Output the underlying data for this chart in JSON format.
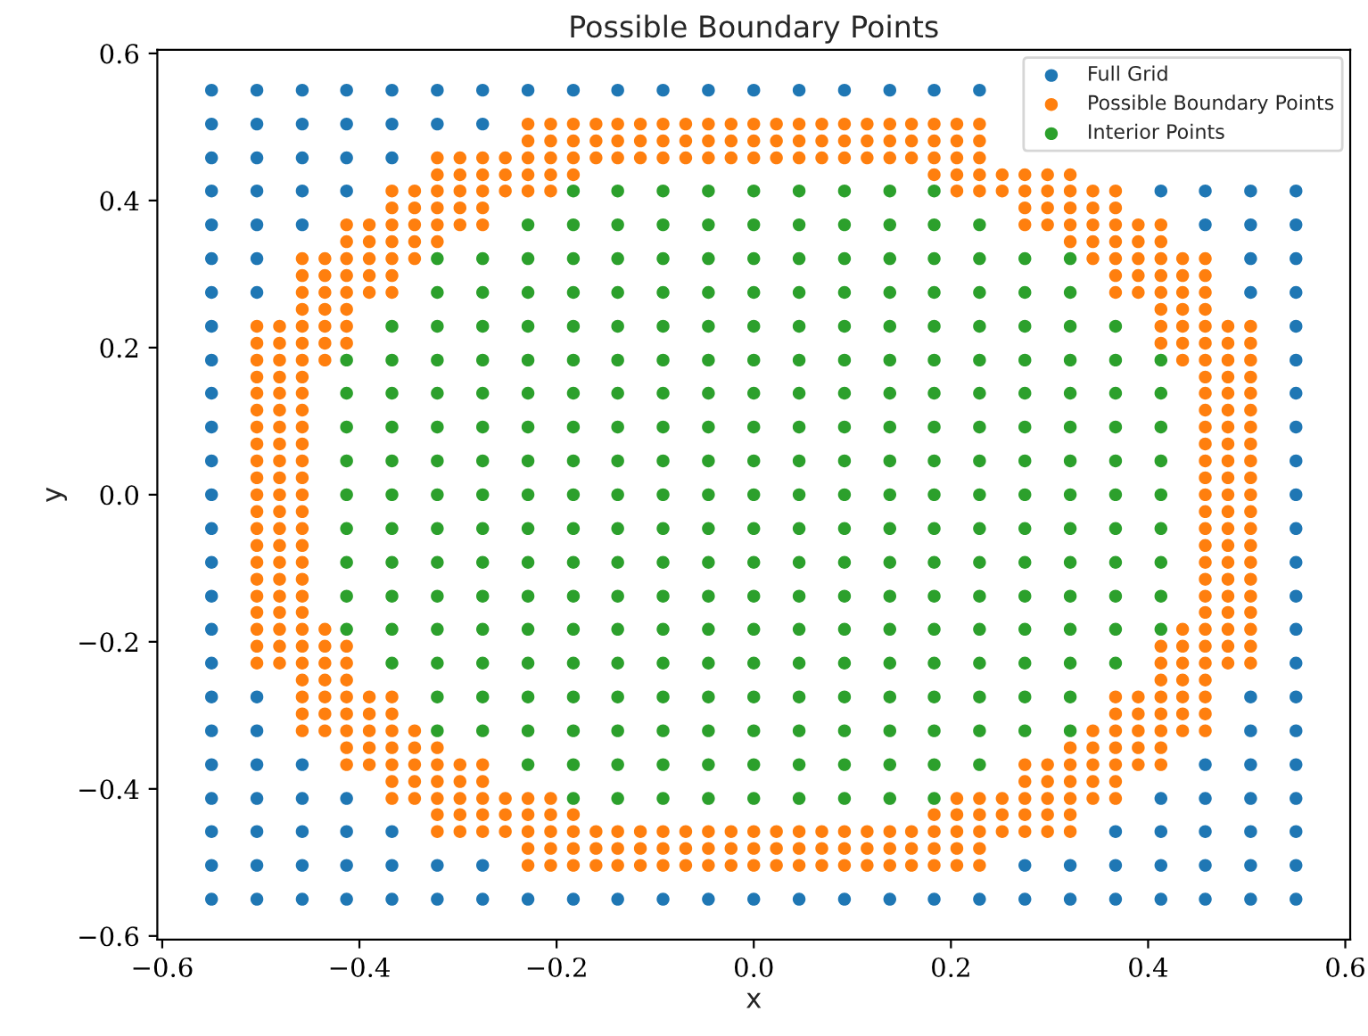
{
  "chart_data": {
    "type": "scatter",
    "title": "Possible Boundary Points",
    "xlabel": "x",
    "ylabel": "y",
    "marker": "circle",
    "legend": "top right",
    "xlim": [
      -0.605,
      0.605
    ],
    "ylim": [
      -0.605,
      0.605
    ],
    "xticks": [
      {
        "value": -0.6,
        "label": "−0.6"
      },
      {
        "value": -0.4,
        "label": "−0.4"
      },
      {
        "value": -0.2,
        "label": "−0.2"
      },
      {
        "value": 0,
        "label": "0.0"
      },
      {
        "value": 0.2,
        "label": "0.2"
      },
      {
        "value": 0.4,
        "label": "0.4"
      },
      {
        "value": 0.6,
        "label": "0.6"
      }
    ],
    "yticks": [
      {
        "value": -0.6,
        "label": "−0.6"
      },
      {
        "value": -0.4,
        "label": "−0.4"
      },
      {
        "value": -0.2,
        "label": "−0.2"
      },
      {
        "value": 0,
        "label": "0.0"
      },
      {
        "value": 0.2,
        "label": "0.2"
      },
      {
        "value": 0.4,
        "label": "0.4"
      },
      {
        "value": 0.6,
        "label": "0.6"
      }
    ],
    "series": [
      {
        "name": "Full Grid",
        "color": "#1f77b4",
        "x": [
          -0.55,
          -0.504,
          -0.458,
          -0.413,
          -0.367,
          -0.321,
          -0.275,
          -0.229,
          -0.183,
          -0.138,
          -0.092,
          -0.046,
          0,
          0.046,
          0.092,
          0.138,
          0.183,
          0.229,
          -0.55,
          -0.504,
          -0.458,
          -0.413,
          -0.367,
          -0.321,
          -0.275,
          -0.55,
          -0.504,
          -0.458,
          -0.413,
          -0.367,
          -0.55,
          -0.504,
          -0.458,
          -0.413,
          0.413,
          0.458,
          0.504,
          0.55,
          -0.55,
          -0.504,
          -0.458,
          0.458,
          0.504,
          0.55,
          -0.55,
          -0.504,
          0.504,
          0.55,
          -0.55,
          -0.504,
          0.504,
          0.55,
          -0.55,
          0.55,
          -0.55,
          0.55,
          -0.55,
          0.55,
          -0.55,
          0.55,
          -0.55,
          0.55,
          -0.55,
          0.55,
          -0.55,
          0.55,
          -0.55,
          0.55,
          -0.55,
          0.55,
          -0.55,
          0.55,
          -0.55,
          0.55,
          -0.55,
          -0.504,
          0.504,
          0.55,
          -0.55,
          -0.504,
          0.504,
          0.55,
          -0.55,
          -0.504,
          -0.458,
          0.458,
          0.504,
          0.55,
          -0.55,
          -0.504,
          -0.458,
          -0.413,
          0.413,
          0.458,
          0.504,
          0.55,
          -0.55,
          -0.504,
          -0.458,
          -0.413,
          -0.367,
          0.367,
          0.413,
          0.458,
          0.504,
          0.55,
          -0.55,
          -0.504,
          -0.458,
          -0.413,
          -0.367,
          -0.321,
          -0.275,
          0.275,
          0.321,
          0.367,
          0.413,
          0.458,
          0.504,
          0.55,
          -0.55,
          -0.504,
          -0.458,
          -0.413,
          -0.367,
          -0.321,
          -0.275,
          -0.229,
          -0.183,
          -0.138,
          -0.092,
          -0.046,
          0,
          0.046,
          0.092,
          0.138,
          0.183,
          0.229,
          0.275,
          0.321,
          0.367,
          0.413,
          0.458,
          0.504,
          0.55
        ],
        "values": [
          0.55,
          0.55,
          0.55,
          0.55,
          0.55,
          0.55,
          0.55,
          0.55,
          0.55,
          0.55,
          0.55,
          0.55,
          0.55,
          0.55,
          0.55,
          0.55,
          0.55,
          0.55,
          0.504,
          0.504,
          0.504,
          0.504,
          0.504,
          0.504,
          0.504,
          0.458,
          0.458,
          0.458,
          0.458,
          0.458,
          0.413,
          0.413,
          0.413,
          0.413,
          0.413,
          0.413,
          0.413,
          0.413,
          0.367,
          0.367,
          0.367,
          0.367,
          0.367,
          0.367,
          0.321,
          0.321,
          0.321,
          0.321,
          0.275,
          0.275,
          0.275,
          0.275,
          0.229,
          0.229,
          0.183,
          0.183,
          0.138,
          0.138,
          0.092,
          0.092,
          0.046,
          0.046,
          0,
          0,
          -0.046,
          -0.046,
          -0.092,
          -0.092,
          -0.138,
          -0.138,
          -0.183,
          -0.183,
          -0.229,
          -0.229,
          -0.275,
          -0.275,
          -0.275,
          -0.275,
          -0.321,
          -0.321,
          -0.321,
          -0.321,
          -0.367,
          -0.367,
          -0.367,
          -0.367,
          -0.367,
          -0.367,
          -0.413,
          -0.413,
          -0.413,
          -0.413,
          -0.413,
          -0.413,
          -0.413,
          -0.413,
          -0.458,
          -0.458,
          -0.458,
          -0.458,
          -0.458,
          -0.458,
          -0.458,
          -0.458,
          -0.458,
          -0.458,
          -0.504,
          -0.504,
          -0.504,
          -0.504,
          -0.504,
          -0.504,
          -0.504,
          -0.504,
          -0.504,
          -0.504,
          -0.504,
          -0.504,
          -0.504,
          -0.504,
          -0.55,
          -0.55,
          -0.55,
          -0.55,
          -0.55,
          -0.55,
          -0.55,
          -0.55,
          -0.55,
          -0.55,
          -0.55,
          -0.55,
          -0.55,
          -0.55,
          -0.55,
          -0.55,
          -0.55,
          -0.55,
          -0.55,
          -0.55,
          -0.55,
          -0.55,
          -0.55,
          -0.55,
          -0.55
        ]
      },
      {
        "name": "Possible Boundary Points",
        "color": "#ff7f0e",
        "x": [
          -0.229,
          -0.206,
          -0.183,
          -0.16,
          -0.138,
          -0.115,
          -0.092,
          -0.069,
          -0.046,
          -0.023,
          0,
          0.023,
          0.046,
          0.069,
          0.092,
          0.115,
          0.138,
          0.16,
          0.183,
          0.206,
          0.229,
          -0.229,
          -0.206,
          -0.183,
          -0.16,
          -0.138,
          -0.115,
          -0.092,
          -0.069,
          -0.046,
          -0.023,
          0,
          0.023,
          0.046,
          0.069,
          0.092,
          0.115,
          0.138,
          0.16,
          0.183,
          0.206,
          0.229,
          -0.321,
          -0.298,
          -0.275,
          -0.252,
          -0.229,
          -0.206,
          -0.183,
          -0.16,
          -0.138,
          -0.115,
          -0.092,
          -0.069,
          -0.046,
          -0.023,
          0,
          0.023,
          0.046,
          0.069,
          0.092,
          0.115,
          0.138,
          0.16,
          0.183,
          0.206,
          0.229,
          -0.321,
          -0.298,
          -0.275,
          -0.252,
          -0.229,
          -0.206,
          -0.183,
          0.183,
          0.206,
          0.229,
          0.252,
          0.275,
          0.298,
          0.321,
          -0.367,
          -0.344,
          -0.321,
          -0.298,
          -0.275,
          -0.252,
          -0.229,
          -0.206,
          0.206,
          0.229,
          0.252,
          0.275,
          0.298,
          0.321,
          0.344,
          0.367,
          -0.367,
          -0.344,
          -0.321,
          -0.298,
          -0.275,
          0.275,
          0.298,
          0.321,
          0.344,
          0.367,
          -0.413,
          -0.39,
          -0.367,
          -0.344,
          -0.321,
          -0.298,
          -0.275,
          0.275,
          0.298,
          0.321,
          0.344,
          0.367,
          0.39,
          0.413,
          -0.413,
          -0.39,
          -0.367,
          -0.344,
          -0.321,
          0.321,
          0.344,
          0.367,
          0.39,
          0.413,
          -0.458,
          -0.435,
          -0.413,
          -0.39,
          -0.367,
          -0.344,
          0.344,
          0.367,
          0.39,
          0.413,
          0.435,
          0.458,
          -0.458,
          -0.435,
          -0.413,
          -0.39,
          -0.367,
          0.367,
          0.39,
          0.413,
          0.435,
          0.458,
          -0.458,
          -0.435,
          -0.413,
          -0.39,
          -0.367,
          0.367,
          0.39,
          0.413,
          0.435,
          0.458,
          -0.458,
          -0.435,
          -0.413,
          0.413,
          0.435,
          0.458,
          -0.504,
          -0.481,
          -0.458,
          -0.435,
          -0.413,
          0.413,
          0.435,
          0.458,
          0.481,
          0.504,
          -0.504,
          -0.481,
          -0.458,
          -0.435,
          -0.413,
          0.413,
          0.435,
          0.458,
          0.481,
          0.504,
          -0.504,
          -0.481,
          -0.458,
          -0.435,
          0.435,
          0.458,
          0.481,
          0.504,
          -0.504,
          -0.481,
          -0.458,
          0.458,
          0.481,
          0.504,
          -0.504,
          -0.481,
          -0.458,
          0.458,
          0.481,
          0.504,
          -0.504,
          -0.481,
          -0.458,
          0.458,
          0.481,
          0.504,
          -0.504,
          -0.481,
          -0.458,
          0.458,
          0.481,
          0.504,
          -0.504,
          -0.481,
          -0.458,
          0.458,
          0.481,
          0.504,
          -0.504,
          -0.481,
          -0.458,
          0.458,
          0.481,
          0.504,
          -0.504,
          -0.481,
          -0.458,
          0.458,
          0.481,
          0.504,
          -0.504,
          -0.481,
          -0.458,
          0.458,
          0.481,
          0.504,
          -0.504,
          -0.481,
          -0.458,
          0.458,
          0.481,
          0.504,
          -0.504,
          -0.481,
          -0.458,
          0.458,
          0.481,
          0.504,
          -0.504,
          -0.481,
          -0.458,
          0.458,
          0.481,
          0.504,
          -0.504,
          -0.481,
          -0.458,
          0.458,
          0.481,
          0.504,
          -0.504,
          -0.481,
          -0.458,
          0.458,
          0.481,
          0.504,
          -0.504,
          -0.481,
          -0.458,
          0.458,
          0.481,
          0.504,
          -0.504,
          -0.481,
          -0.458,
          0.458,
          0.481,
          0.504,
          -0.504,
          -0.481,
          -0.458,
          -0.435,
          0.435,
          0.458,
          0.481,
          0.504,
          -0.504,
          -0.481,
          -0.458,
          -0.435,
          -0.413,
          0.413,
          0.435,
          0.458,
          0.481,
          0.504,
          -0.504,
          -0.481,
          -0.458,
          -0.435,
          -0.413,
          0.413,
          0.435,
          0.458,
          0.481,
          0.504,
          -0.458,
          -0.435,
          -0.413,
          0.413,
          0.435,
          0.458,
          -0.458,
          -0.435,
          -0.413,
          -0.39,
          -0.367,
          0.367,
          0.39,
          0.413,
          0.435,
          0.458,
          -0.458,
          -0.435,
          -0.413,
          -0.39,
          -0.367,
          0.367,
          0.39,
          0.413,
          0.435,
          0.458,
          -0.458,
          -0.435,
          -0.413,
          -0.39,
          -0.367,
          -0.344,
          0.344,
          0.367,
          0.39,
          0.413,
          0.435,
          0.458,
          -0.413,
          -0.39,
          -0.367,
          -0.344,
          -0.321,
          0.321,
          0.344,
          0.367,
          0.39,
          0.413,
          -0.413,
          -0.39,
          -0.367,
          -0.344,
          -0.321,
          -0.298,
          -0.275,
          0.275,
          0.298,
          0.321,
          0.344,
          0.367,
          0.39,
          0.413,
          -0.367,
          -0.344,
          -0.321,
          -0.298,
          -0.275,
          0.275,
          0.298,
          0.321,
          0.344,
          0.367,
          -0.367,
          -0.344,
          -0.321,
          -0.298,
          -0.275,
          -0.252,
          -0.229,
          -0.206,
          0.206,
          0.229,
          0.252,
          0.275,
          0.298,
          0.321,
          0.344,
          0.367,
          -0.321,
          -0.298,
          -0.275,
          -0.252,
          -0.229,
          -0.206,
          -0.183,
          0.183,
          0.206,
          0.229,
          0.252,
          0.275,
          0.298,
          0.321,
          -0.321,
          -0.298,
          -0.275,
          -0.252,
          -0.229,
          -0.206,
          -0.183,
          -0.16,
          -0.138,
          -0.115,
          -0.092,
          -0.069,
          -0.046,
          -0.023,
          0,
          0.023,
          0.046,
          0.069,
          0.092,
          0.115,
          0.138,
          0.16,
          0.183,
          0.206,
          0.229,
          0.252,
          0.275,
          0.298,
          0.321,
          -0.229,
          -0.206,
          -0.183,
          -0.16,
          -0.138,
          -0.115,
          -0.092,
          -0.069,
          -0.046,
          -0.023,
          0,
          0.023,
          0.046,
          0.069,
          0.092,
          0.115,
          0.138,
          0.16,
          0.183,
          0.206,
          0.229,
          -0.229,
          -0.206,
          -0.183,
          -0.16,
          -0.138,
          -0.115,
          -0.092,
          -0.069,
          -0.046,
          -0.023,
          0,
          0.023,
          0.046,
          0.069,
          0.092,
          0.115,
          0.138,
          0.16,
          0.183,
          0.206,
          0.229
        ],
        "values": [
          0.504,
          0.504,
          0.504,
          0.504,
          0.504,
          0.504,
          0.504,
          0.504,
          0.504,
          0.504,
          0.504,
          0.504,
          0.504,
          0.504,
          0.504,
          0.504,
          0.504,
          0.504,
          0.504,
          0.504,
          0.504,
          0.481,
          0.481,
          0.481,
          0.481,
          0.481,
          0.481,
          0.481,
          0.481,
          0.481,
          0.481,
          0.481,
          0.481,
          0.481,
          0.481,
          0.481,
          0.481,
          0.481,
          0.481,
          0.481,
          0.481,
          0.481,
          0.458,
          0.458,
          0.458,
          0.458,
          0.458,
          0.458,
          0.458,
          0.458,
          0.458,
          0.458,
          0.458,
          0.458,
          0.458,
          0.458,
          0.458,
          0.458,
          0.458,
          0.458,
          0.458,
          0.458,
          0.458,
          0.458,
          0.458,
          0.458,
          0.458,
          0.435,
          0.435,
          0.435,
          0.435,
          0.435,
          0.435,
          0.435,
          0.435,
          0.435,
          0.435,
          0.435,
          0.435,
          0.435,
          0.435,
          0.413,
          0.413,
          0.413,
          0.413,
          0.413,
          0.413,
          0.413,
          0.413,
          0.413,
          0.413,
          0.413,
          0.413,
          0.413,
          0.413,
          0.413,
          0.413,
          0.39,
          0.39,
          0.39,
          0.39,
          0.39,
          0.39,
          0.39,
          0.39,
          0.39,
          0.39,
          0.367,
          0.367,
          0.367,
          0.367,
          0.367,
          0.367,
          0.367,
          0.367,
          0.367,
          0.367,
          0.367,
          0.367,
          0.367,
          0.367,
          0.344,
          0.344,
          0.344,
          0.344,
          0.344,
          0.344,
          0.344,
          0.344,
          0.344,
          0.344,
          0.321,
          0.321,
          0.321,
          0.321,
          0.321,
          0.321,
          0.321,
          0.321,
          0.321,
          0.321,
          0.321,
          0.321,
          0.298,
          0.298,
          0.298,
          0.298,
          0.298,
          0.298,
          0.298,
          0.298,
          0.298,
          0.298,
          0.275,
          0.275,
          0.275,
          0.275,
          0.275,
          0.275,
          0.275,
          0.275,
          0.275,
          0.275,
          0.252,
          0.252,
          0.252,
          0.252,
          0.252,
          0.252,
          0.229,
          0.229,
          0.229,
          0.229,
          0.229,
          0.229,
          0.229,
          0.229,
          0.229,
          0.229,
          0.206,
          0.206,
          0.206,
          0.206,
          0.206,
          0.206,
          0.206,
          0.206,
          0.206,
          0.206,
          0.183,
          0.183,
          0.183,
          0.183,
          0.183,
          0.183,
          0.183,
          0.183,
          0.16,
          0.16,
          0.16,
          0.16,
          0.16,
          0.16,
          0.138,
          0.138,
          0.138,
          0.138,
          0.138,
          0.138,
          0.115,
          0.115,
          0.115,
          0.115,
          0.115,
          0.115,
          0.092,
          0.092,
          0.092,
          0.092,
          0.092,
          0.092,
          0.069,
          0.069,
          0.069,
          0.069,
          0.069,
          0.069,
          0.046,
          0.046,
          0.046,
          0.046,
          0.046,
          0.046,
          0.023,
          0.023,
          0.023,
          0.023,
          0.023,
          0.023,
          0,
          0,
          0,
          0,
          0,
          0,
          -0.023,
          -0.023,
          -0.023,
          -0.023,
          -0.023,
          -0.023,
          -0.046,
          -0.046,
          -0.046,
          -0.046,
          -0.046,
          -0.046,
          -0.069,
          -0.069,
          -0.069,
          -0.069,
          -0.069,
          -0.069,
          -0.092,
          -0.092,
          -0.092,
          -0.092,
          -0.092,
          -0.092,
          -0.115,
          -0.115,
          -0.115,
          -0.115,
          -0.115,
          -0.115,
          -0.138,
          -0.138,
          -0.138,
          -0.138,
          -0.138,
          -0.138,
          -0.16,
          -0.16,
          -0.16,
          -0.16,
          -0.16,
          -0.16,
          -0.183,
          -0.183,
          -0.183,
          -0.183,
          -0.183,
          -0.183,
          -0.183,
          -0.183,
          -0.206,
          -0.206,
          -0.206,
          -0.206,
          -0.206,
          -0.206,
          -0.206,
          -0.206,
          -0.206,
          -0.206,
          -0.229,
          -0.229,
          -0.229,
          -0.229,
          -0.229,
          -0.229,
          -0.229,
          -0.229,
          -0.229,
          -0.229,
          -0.252,
          -0.252,
          -0.252,
          -0.252,
          -0.252,
          -0.252,
          -0.275,
          -0.275,
          -0.275,
          -0.275,
          -0.275,
          -0.275,
          -0.275,
          -0.275,
          -0.275,
          -0.275,
          -0.298,
          -0.298,
          -0.298,
          -0.298,
          -0.298,
          -0.298,
          -0.298,
          -0.298,
          -0.298,
          -0.298,
          -0.321,
          -0.321,
          -0.321,
          -0.321,
          -0.321,
          -0.321,
          -0.321,
          -0.321,
          -0.321,
          -0.321,
          -0.321,
          -0.321,
          -0.344,
          -0.344,
          -0.344,
          -0.344,
          -0.344,
          -0.344,
          -0.344,
          -0.344,
          -0.344,
          -0.344,
          -0.367,
          -0.367,
          -0.367,
          -0.367,
          -0.367,
          -0.367,
          -0.367,
          -0.367,
          -0.367,
          -0.367,
          -0.367,
          -0.367,
          -0.367,
          -0.367,
          -0.39,
          -0.39,
          -0.39,
          -0.39,
          -0.39,
          -0.39,
          -0.39,
          -0.39,
          -0.39,
          -0.39,
          -0.413,
          -0.413,
          -0.413,
          -0.413,
          -0.413,
          -0.413,
          -0.413,
          -0.413,
          -0.413,
          -0.413,
          -0.413,
          -0.413,
          -0.413,
          -0.413,
          -0.413,
          -0.413,
          -0.435,
          -0.435,
          -0.435,
          -0.435,
          -0.435,
          -0.435,
          -0.435,
          -0.435,
          -0.435,
          -0.435,
          -0.435,
          -0.435,
          -0.435,
          -0.435,
          -0.458,
          -0.458,
          -0.458,
          -0.458,
          -0.458,
          -0.458,
          -0.458,
          -0.458,
          -0.458,
          -0.458,
          -0.458,
          -0.458,
          -0.458,
          -0.458,
          -0.458,
          -0.458,
          -0.458,
          -0.458,
          -0.458,
          -0.458,
          -0.458,
          -0.458,
          -0.458,
          -0.458,
          -0.458,
          -0.458,
          -0.458,
          -0.458,
          -0.458,
          -0.481,
          -0.481,
          -0.481,
          -0.481,
          -0.481,
          -0.481,
          -0.481,
          -0.481,
          -0.481,
          -0.481,
          -0.481,
          -0.481,
          -0.481,
          -0.481,
          -0.481,
          -0.481,
          -0.481,
          -0.481,
          -0.481,
          -0.481,
          -0.481,
          -0.504,
          -0.504,
          -0.504,
          -0.504,
          -0.504,
          -0.504,
          -0.504,
          -0.504,
          -0.504,
          -0.504,
          -0.504,
          -0.504,
          -0.504,
          -0.504,
          -0.504,
          -0.504,
          -0.504,
          -0.504,
          -0.504,
          -0.504,
          -0.504
        ]
      },
      {
        "name": "Interior Points",
        "color": "#2ca02c",
        "x": [
          -0.183,
          -0.138,
          -0.092,
          -0.046,
          0,
          0.046,
          0.092,
          0.138,
          0.183,
          -0.229,
          -0.183,
          -0.138,
          -0.092,
          -0.046,
          0,
          0.046,
          0.092,
          0.138,
          0.183,
          0.229,
          -0.321,
          -0.275,
          -0.229,
          -0.183,
          -0.138,
          -0.092,
          -0.046,
          0,
          0.046,
          0.092,
          0.138,
          0.183,
          0.229,
          0.275,
          0.321,
          -0.321,
          -0.275,
          -0.229,
          -0.183,
          -0.138,
          -0.092,
          -0.046,
          0,
          0.046,
          0.092,
          0.138,
          0.183,
          0.229,
          0.275,
          0.321,
          -0.367,
          -0.321,
          -0.275,
          -0.229,
          -0.183,
          -0.138,
          -0.092,
          -0.046,
          0,
          0.046,
          0.092,
          0.138,
          0.183,
          0.229,
          0.275,
          0.321,
          0.367,
          -0.413,
          -0.367,
          -0.321,
          -0.275,
          -0.229,
          -0.183,
          -0.138,
          -0.092,
          -0.046,
          0,
          0.046,
          0.092,
          0.138,
          0.183,
          0.229,
          0.275,
          0.321,
          0.367,
          0.413,
          -0.413,
          -0.367,
          -0.321,
          -0.275,
          -0.229,
          -0.183,
          -0.138,
          -0.092,
          -0.046,
          0,
          0.046,
          0.092,
          0.138,
          0.183,
          0.229,
          0.275,
          0.321,
          0.367,
          0.413,
          -0.413,
          -0.367,
          -0.321,
          -0.275,
          -0.229,
          -0.183,
          -0.138,
          -0.092,
          -0.046,
          0,
          0.046,
          0.092,
          0.138,
          0.183,
          0.229,
          0.275,
          0.321,
          0.367,
          0.413,
          -0.413,
          -0.367,
          -0.321,
          -0.275,
          -0.229,
          -0.183,
          -0.138,
          -0.092,
          -0.046,
          0,
          0.046,
          0.092,
          0.138,
          0.183,
          0.229,
          0.275,
          0.321,
          0.367,
          0.413,
          -0.413,
          -0.367,
          -0.321,
          -0.275,
          -0.229,
          -0.183,
          -0.138,
          -0.092,
          -0.046,
          0,
          0.046,
          0.092,
          0.138,
          0.183,
          0.229,
          0.275,
          0.321,
          0.367,
          0.413,
          -0.413,
          -0.367,
          -0.321,
          -0.275,
          -0.229,
          -0.183,
          -0.138,
          -0.092,
          -0.046,
          0,
          0.046,
          0.092,
          0.138,
          0.183,
          0.229,
          0.275,
          0.321,
          0.367,
          0.413,
          -0.413,
          -0.367,
          -0.321,
          -0.275,
          -0.229,
          -0.183,
          -0.138,
          -0.092,
          -0.046,
          0,
          0.046,
          0.092,
          0.138,
          0.183,
          0.229,
          0.275,
          0.321,
          0.367,
          0.413,
          -0.413,
          -0.367,
          -0.321,
          -0.275,
          -0.229,
          -0.183,
          -0.138,
          -0.092,
          -0.046,
          0,
          0.046,
          0.092,
          0.138,
          0.183,
          0.229,
          0.275,
          0.321,
          0.367,
          0.413,
          -0.413,
          -0.367,
          -0.321,
          -0.275,
          -0.229,
          -0.183,
          -0.138,
          -0.092,
          -0.046,
          0,
          0.046,
          0.092,
          0.138,
          0.183,
          0.229,
          0.275,
          0.321,
          0.367,
          0.413,
          -0.367,
          -0.321,
          -0.275,
          -0.229,
          -0.183,
          -0.138,
          -0.092,
          -0.046,
          0,
          0.046,
          0.092,
          0.138,
          0.183,
          0.229,
          0.275,
          0.321,
          0.367,
          -0.321,
          -0.275,
          -0.229,
          -0.183,
          -0.138,
          -0.092,
          -0.046,
          0,
          0.046,
          0.092,
          0.138,
          0.183,
          0.229,
          0.275,
          0.321,
          -0.321,
          -0.275,
          -0.229,
          -0.183,
          -0.138,
          -0.092,
          -0.046,
          0,
          0.046,
          0.092,
          0.138,
          0.183,
          0.229,
          0.275,
          0.321,
          -0.229,
          -0.183,
          -0.138,
          -0.092,
          -0.046,
          0,
          0.046,
          0.092,
          0.138,
          0.183,
          0.229,
          -0.183,
          -0.138,
          -0.092,
          -0.046,
          0,
          0.046,
          0.092,
          0.138,
          0.183
        ],
        "values": [
          0.413,
          0.413,
          0.413,
          0.413,
          0.413,
          0.413,
          0.413,
          0.413,
          0.413,
          0.367,
          0.367,
          0.367,
          0.367,
          0.367,
          0.367,
          0.367,
          0.367,
          0.367,
          0.367,
          0.367,
          0.321,
          0.321,
          0.321,
          0.321,
          0.321,
          0.321,
          0.321,
          0.321,
          0.321,
          0.321,
          0.321,
          0.321,
          0.321,
          0.321,
          0.321,
          0.275,
          0.275,
          0.275,
          0.275,
          0.275,
          0.275,
          0.275,
          0.275,
          0.275,
          0.275,
          0.275,
          0.275,
          0.275,
          0.275,
          0.275,
          0.229,
          0.229,
          0.229,
          0.229,
          0.229,
          0.229,
          0.229,
          0.229,
          0.229,
          0.229,
          0.229,
          0.229,
          0.229,
          0.229,
          0.229,
          0.229,
          0.229,
          0.183,
          0.183,
          0.183,
          0.183,
          0.183,
          0.183,
          0.183,
          0.183,
          0.183,
          0.183,
          0.183,
          0.183,
          0.183,
          0.183,
          0.183,
          0.183,
          0.183,
          0.183,
          0.183,
          0.138,
          0.138,
          0.138,
          0.138,
          0.138,
          0.138,
          0.138,
          0.138,
          0.138,
          0.138,
          0.138,
          0.138,
          0.138,
          0.138,
          0.138,
          0.138,
          0.138,
          0.138,
          0.138,
          0.092,
          0.092,
          0.092,
          0.092,
          0.092,
          0.092,
          0.092,
          0.092,
          0.092,
          0.092,
          0.092,
          0.092,
          0.092,
          0.092,
          0.092,
          0.092,
          0.092,
          0.092,
          0.092,
          0.046,
          0.046,
          0.046,
          0.046,
          0.046,
          0.046,
          0.046,
          0.046,
          0.046,
          0.046,
          0.046,
          0.046,
          0.046,
          0.046,
          0.046,
          0.046,
          0.046,
          0.046,
          0.046,
          0,
          0,
          0,
          0,
          0,
          0,
          0,
          0,
          0,
          0,
          0,
          0,
          0,
          0,
          0,
          0,
          0,
          0,
          0,
          -0.046,
          -0.046,
          -0.046,
          -0.046,
          -0.046,
          -0.046,
          -0.046,
          -0.046,
          -0.046,
          -0.046,
          -0.046,
          -0.046,
          -0.046,
          -0.046,
          -0.046,
          -0.046,
          -0.046,
          -0.046,
          -0.046,
          -0.092,
          -0.092,
          -0.092,
          -0.092,
          -0.092,
          -0.092,
          -0.092,
          -0.092,
          -0.092,
          -0.092,
          -0.092,
          -0.092,
          -0.092,
          -0.092,
          -0.092,
          -0.092,
          -0.092,
          -0.092,
          -0.092,
          -0.138,
          -0.138,
          -0.138,
          -0.138,
          -0.138,
          -0.138,
          -0.138,
          -0.138,
          -0.138,
          -0.138,
          -0.138,
          -0.138,
          -0.138,
          -0.138,
          -0.138,
          -0.138,
          -0.138,
          -0.138,
          -0.138,
          -0.183,
          -0.183,
          -0.183,
          -0.183,
          -0.183,
          -0.183,
          -0.183,
          -0.183,
          -0.183,
          -0.183,
          -0.183,
          -0.183,
          -0.183,
          -0.183,
          -0.183,
          -0.183,
          -0.183,
          -0.183,
          -0.183,
          -0.229,
          -0.229,
          -0.229,
          -0.229,
          -0.229,
          -0.229,
          -0.229,
          -0.229,
          -0.229,
          -0.229,
          -0.229,
          -0.229,
          -0.229,
          -0.229,
          -0.229,
          -0.229,
          -0.229,
          -0.275,
          -0.275,
          -0.275,
          -0.275,
          -0.275,
          -0.275,
          -0.275,
          -0.275,
          -0.275,
          -0.275,
          -0.275,
          -0.275,
          -0.275,
          -0.275,
          -0.275,
          -0.321,
          -0.321,
          -0.321,
          -0.321,
          -0.321,
          -0.321,
          -0.321,
          -0.321,
          -0.321,
          -0.321,
          -0.321,
          -0.321,
          -0.321,
          -0.321,
          -0.321,
          -0.367,
          -0.367,
          -0.367,
          -0.367,
          -0.367,
          -0.367,
          -0.367,
          -0.367,
          -0.367,
          -0.367,
          -0.367,
          -0.413,
          -0.413,
          -0.413,
          -0.413,
          -0.413,
          -0.413,
          -0.413,
          -0.413,
          -0.413
        ]
      }
    ]
  }
}
